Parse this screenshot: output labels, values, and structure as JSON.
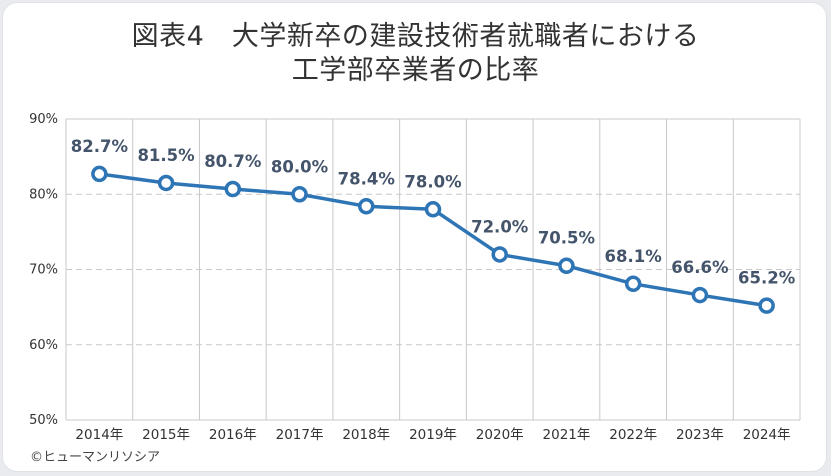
{
  "title_lines": [
    "図表4　大学新卒の建設技術者就職者における",
    "工学部卒業者の比率"
  ],
  "credit": "©ヒューマンリソシア",
  "colors": {
    "line": "#2e75b6",
    "label": "#44546a",
    "grid": "#c8c8c8"
  },
  "chart_data": {
    "type": "line",
    "title": "図表4　大学新卒の建設技術者就職者における工学部卒業者の比率",
    "categories": [
      "2014年",
      "2015年",
      "2016年",
      "2017年",
      "2018年",
      "2019年",
      "2020年",
      "2021年",
      "2022年",
      "2023年",
      "2024年"
    ],
    "values": [
      82.7,
      81.5,
      80.7,
      80.0,
      78.4,
      78.0,
      72.0,
      70.5,
      68.1,
      66.6,
      65.2
    ],
    "data_labels": [
      "82.7%",
      "81.5%",
      "80.7%",
      "80.0%",
      "78.4%",
      "78.0%",
      "72.0%",
      "70.5%",
      "68.1%",
      "66.6%",
      "65.2%"
    ],
    "yticks": [
      50,
      60,
      70,
      80,
      90
    ],
    "ytick_labels": [
      "50%",
      "60%",
      "70%",
      "80%",
      "90%"
    ],
    "ylim": [
      50,
      90
    ],
    "grid": true,
    "legend": "none"
  }
}
